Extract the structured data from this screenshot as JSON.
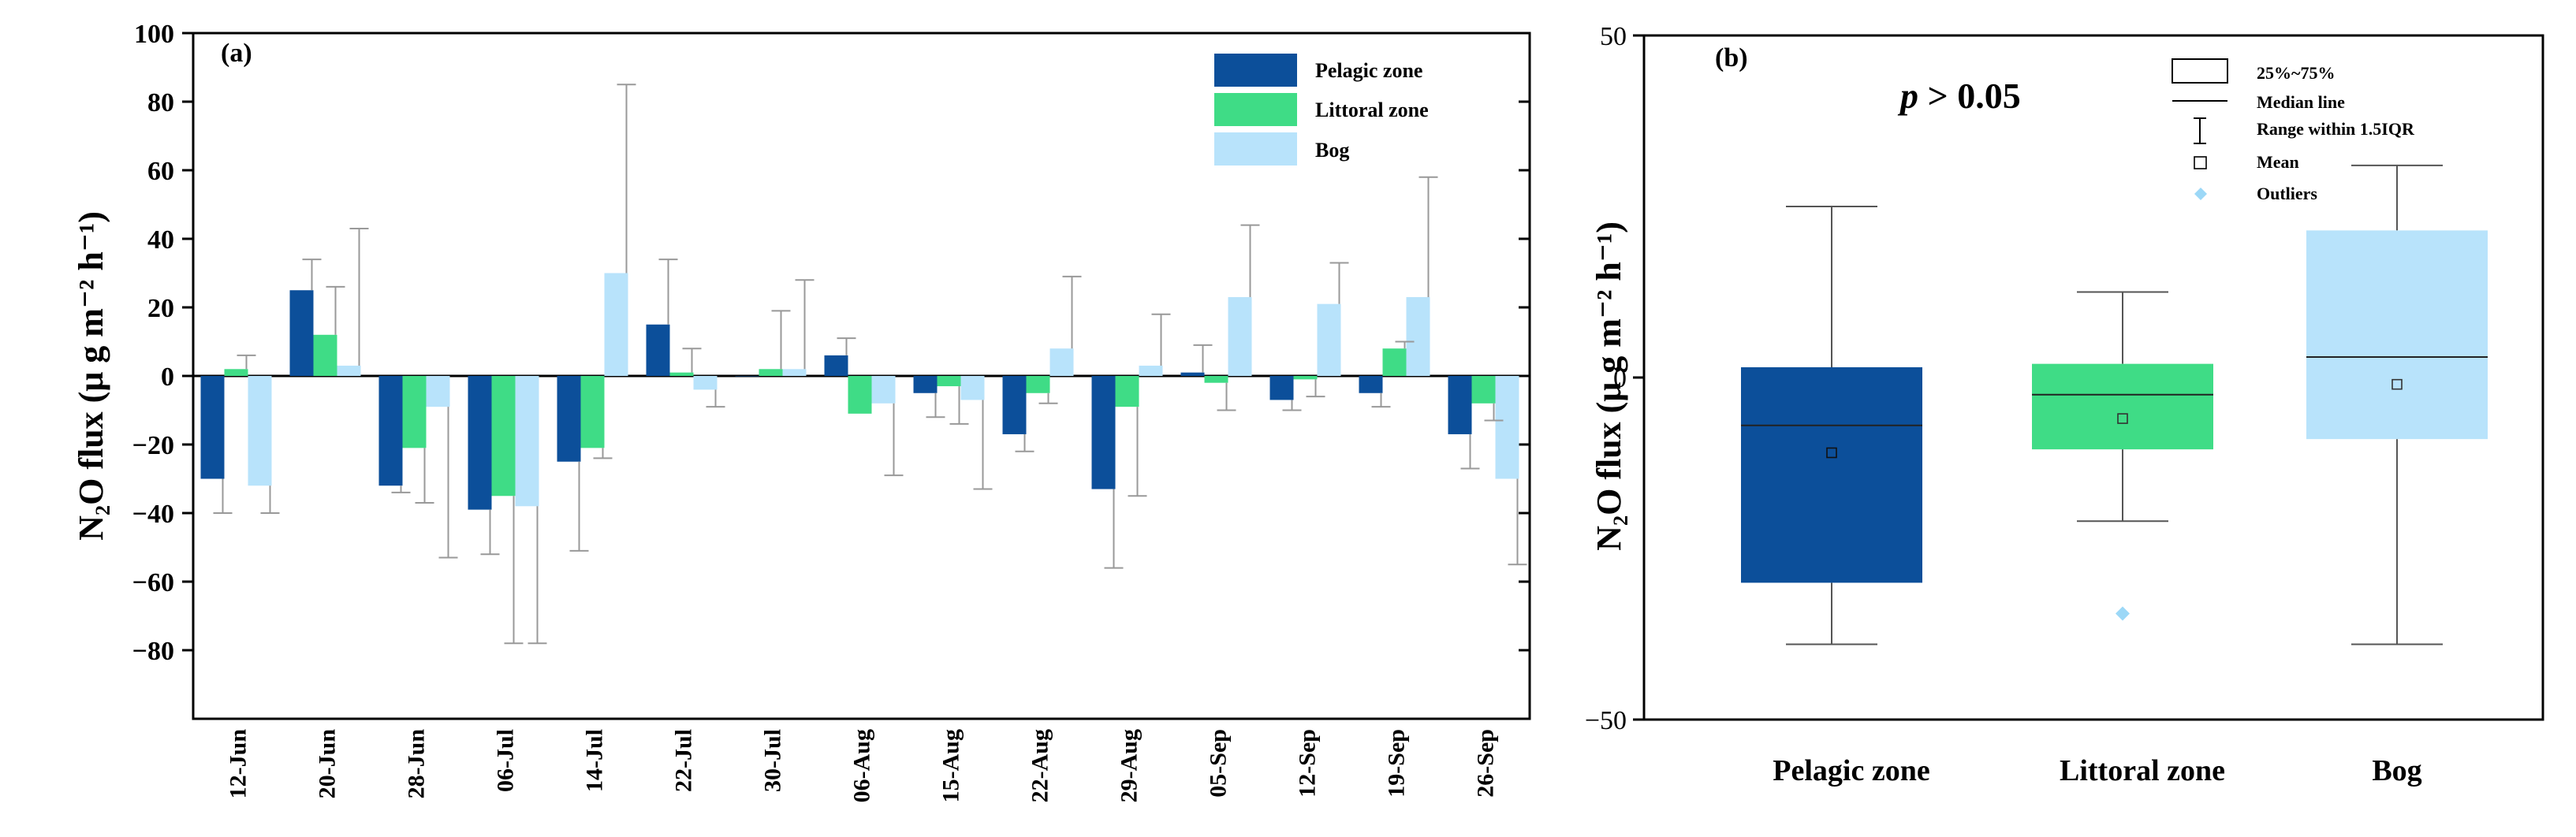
{
  "colors": {
    "pelagic": "#0c4f9a",
    "littoral": "#3fdc86",
    "bog": "#b8e3fb",
    "bog_outlier": "#9cd8f7",
    "axis": "#000000",
    "whisker": "#999999"
  },
  "chart_data": [
    {
      "type": "bar",
      "panel_label": "(a)",
      "title": "",
      "xlabel": "",
      "ylabel": "N₂O flux (μ g m⁻² h⁻¹)",
      "ylim": [
        -100,
        100
      ],
      "yticks": [
        100,
        80,
        60,
        40,
        20,
        0,
        -20,
        -40,
        -60,
        -80
      ],
      "ytick_labels": [
        "100",
        "80",
        "60",
        "40",
        "20",
        "0",
        "−20",
        "−40",
        "−60",
        "−80"
      ],
      "categories": [
        "12-Jun",
        "20-Jun",
        "28-Jun",
        "06-Jul",
        "14-Jul",
        "22-Jul",
        "30-Jul",
        "06-Aug",
        "15-Aug",
        "22-Aug",
        "29-Aug",
        "05-Sep",
        "12-Sep",
        "19-Sep",
        "26-Sep"
      ],
      "legend_position": "top-right",
      "series": [
        {
          "name": "Pelagic zone",
          "color_key": "pelagic",
          "values": [
            -30,
            25,
            -32,
            -39,
            -25,
            15,
            0,
            6,
            -5,
            -17,
            -33,
            1,
            -7,
            -5,
            -17
          ],
          "errors": [
            10,
            9,
            2,
            13,
            26,
            19,
            0,
            5,
            7,
            5,
            23,
            8,
            3,
            4,
            10
          ]
        },
        {
          "name": "Littoral zone",
          "color_key": "littoral",
          "values": [
            2,
            12,
            -21,
            -35,
            -21,
            1,
            2,
            -11,
            -3,
            -5,
            -9,
            -2,
            -1,
            8,
            -8
          ],
          "errors": [
            4,
            14,
            16,
            43,
            3,
            7,
            17,
            0,
            11,
            3,
            26,
            8,
            5,
            2,
            5
          ]
        },
        {
          "name": "Bog",
          "color_key": "bog",
          "values": [
            -32,
            3,
            -9,
            -38,
            30,
            -4,
            2,
            -8,
            -7,
            8,
            3,
            23,
            21,
            23,
            -30
          ],
          "errors": [
            8,
            40,
            44,
            40,
            55,
            5,
            26,
            21,
            26,
            21,
            15,
            21,
            12,
            35,
            25
          ]
        }
      ]
    },
    {
      "type": "box",
      "panel_label": "(b)",
      "annotation_p": "p",
      "annotation_rest": " > 0.05",
      "ylabel": "N₂O flux (μ g m⁻² h⁻¹)",
      "ylim": [
        -50,
        50
      ],
      "yticks": [
        50,
        0,
        -50
      ],
      "ytick_labels": [
        "50",
        "0",
        "−50"
      ],
      "categories": [
        "Pelagic zone",
        "Littoral zone",
        "Bog"
      ],
      "legend_position": "top-right",
      "legend": {
        "box": "25%~75%",
        "median": "Median line",
        "range": "Range within 1.5IQR",
        "mean": "Mean",
        "outliers": "Outliers"
      },
      "boxes": [
        {
          "name": "Pelagic zone",
          "color_key": "pelagic",
          "q1": -30,
          "median": -7,
          "q3": 1.5,
          "mean": -11,
          "whisker_low": -39,
          "whisker_high": 25,
          "outliers": []
        },
        {
          "name": "Littoral zone",
          "color_key": "littoral",
          "q1": -10.5,
          "median": -2.5,
          "q3": 2,
          "mean": -6,
          "whisker_low": -21,
          "whisker_high": 12.5,
          "outliers": [
            -34.5
          ]
        },
        {
          "name": "Bog",
          "color_key": "bog",
          "q1": -9,
          "median": 3,
          "q3": 21.5,
          "mean": -1,
          "whisker_low": -39,
          "whisker_high": 31,
          "outliers": []
        }
      ]
    }
  ]
}
